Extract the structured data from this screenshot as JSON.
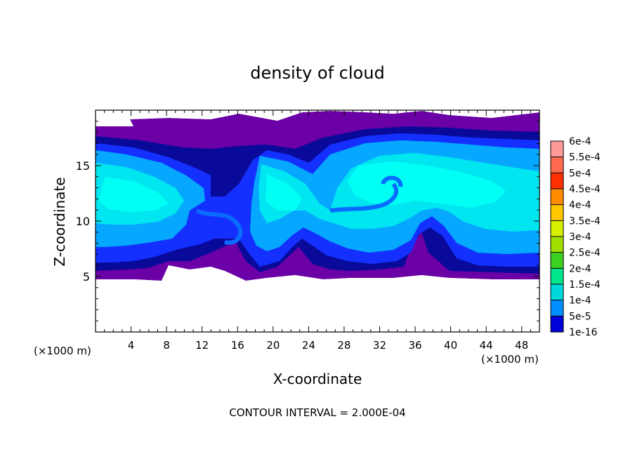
{
  "chart_data": {
    "type": "heatmap",
    "title": "density of cloud",
    "xlabel": "X-coordinate",
    "ylabel": "Z-coordinate",
    "x_unit_left": "(×1000 m)",
    "x_unit_right": "(×1000 m)",
    "footer": "CONTOUR INTERVAL = 2.000E-04",
    "xlim": [
      0,
      50
    ],
    "ylim": [
      0,
      20
    ],
    "x_ticks": [
      "4",
      "8",
      "12",
      "16",
      "20",
      "24",
      "28",
      "32",
      "36",
      "40",
      "44",
      "48"
    ],
    "x_tick_values": [
      4,
      8,
      12,
      16,
      20,
      24,
      28,
      32,
      36,
      40,
      44,
      48
    ],
    "y_ticks": [
      "5",
      "10",
      "15"
    ],
    "y_tick_values": [
      5,
      10,
      15
    ],
    "colorbar": {
      "labels": [
        "6e-4",
        "5.5e-4",
        "5e-4",
        "4.5e-4",
        "4e-4",
        "3.5e-4",
        "3e-4",
        "2.5e-4",
        "2e-4",
        "1.5e-4",
        "1e-4",
        "5e-5",
        "1e-16"
      ],
      "colors": [
        "#ff9a9a",
        "#ff6a50",
        "#ff3000",
        "#ff8c00",
        "#ffc800",
        "#d6ef00",
        "#a0e000",
        "#3cd020",
        "#00e68c",
        "#00d8dc",
        "#0090ff",
        "#0000d8",
        "#7a00a8"
      ]
    },
    "field_colors": {
      "deep_purple": "#6a00a6",
      "navy": "#0a0a9a",
      "blue": "#1430ff",
      "mid_blue": "#0a6cff",
      "light_blue": "#06a8ff",
      "cyan": "#00e6f0",
      "bright_cyan": "#00fff4"
    }
  }
}
